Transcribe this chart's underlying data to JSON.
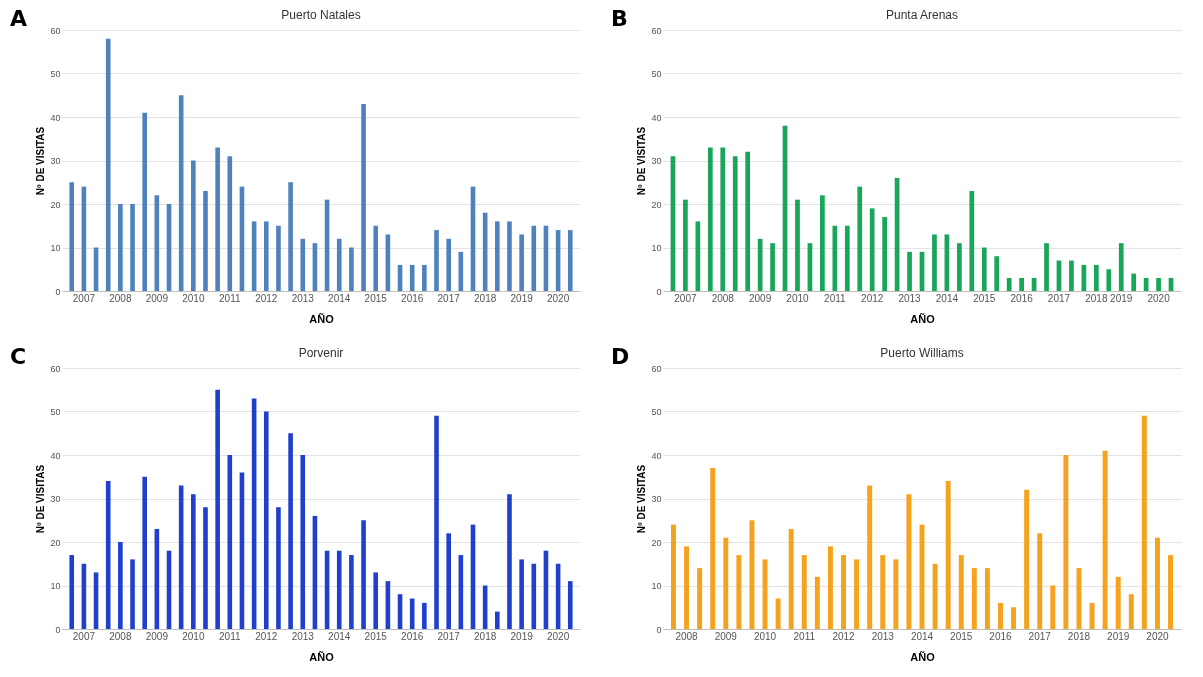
{
  "chart_data": [
    {
      "type": "bar",
      "title": "Puerto Natales",
      "xlabel": "AÑO",
      "ylabel": "Nº DE VISITAS",
      "annotations": [
        "A"
      ],
      "grid": "y",
      "ylim": [
        0,
        60
      ],
      "yticks": [
        0,
        10,
        20,
        30,
        40,
        50,
        60
      ],
      "categories": [
        null,
        "2007",
        null,
        null,
        "2008",
        null,
        null,
        "2009",
        null,
        null,
        "2010",
        null,
        null,
        "2011",
        null,
        null,
        "2012",
        null,
        null,
        "2013",
        null,
        null,
        "2014",
        null,
        null,
        "2015",
        null,
        null,
        "2016",
        null,
        null,
        "2017",
        null,
        null,
        "2018",
        null,
        null,
        "2019",
        null,
        null,
        "2020",
        null
      ],
      "series": [
        {
          "color": "#4f81bd",
          "values": [
            25,
            24,
            10,
            58,
            20,
            20,
            41,
            22,
            20,
            45,
            30,
            23,
            33,
            31,
            24,
            16,
            16,
            15,
            25,
            12,
            11,
            21,
            12,
            10,
            43,
            15,
            13,
            6,
            6,
            6,
            14,
            12,
            9,
            24,
            18,
            16,
            16,
            13,
            15,
            15,
            14,
            14
          ]
        }
      ]
    },
    {
      "type": "bar",
      "title": "Punta Arenas",
      "xlabel": "AÑO",
      "ylabel": "Nº DE VISITAS",
      "annotations": [
        "B"
      ],
      "grid": "y",
      "ylim": [
        0,
        60
      ],
      "yticks": [
        0,
        10,
        20,
        30,
        40,
        50,
        60
      ],
      "categories": [
        null,
        "2007",
        null,
        null,
        "2008",
        null,
        null,
        "2009",
        null,
        null,
        "2010",
        null,
        null,
        "2011",
        null,
        null,
        "2012",
        null,
        null,
        "2013",
        null,
        null,
        "2014",
        null,
        null,
        "2015",
        null,
        null,
        "2016",
        null,
        null,
        "2017",
        null,
        null,
        "2018",
        null,
        "2019",
        null,
        null,
        "2020",
        null
      ],
      "series": [
        {
          "color": "#1aa65a",
          "values": [
            31,
            21,
            16,
            33,
            33,
            31,
            32,
            12,
            11,
            38,
            21,
            11,
            22,
            15,
            15,
            24,
            19,
            17,
            26,
            9,
            9,
            13,
            13,
            11,
            23,
            10,
            8,
            3,
            3,
            3,
            11,
            7,
            7,
            6,
            6,
            5,
            11,
            4,
            3,
            3,
            3
          ]
        }
      ]
    },
    {
      "type": "bar",
      "title": "Porvenir",
      "xlabel": "AÑO",
      "ylabel": "Nº DE VISITAS",
      "annotations": [
        "C"
      ],
      "grid": "y",
      "ylim": [
        0,
        60
      ],
      "yticks": [
        0,
        10,
        20,
        30,
        40,
        50,
        60
      ],
      "categories": [
        null,
        "2007",
        null,
        null,
        "2008",
        null,
        null,
        "2009",
        null,
        null,
        "2010",
        null,
        null,
        "2011",
        null,
        null,
        "2012",
        null,
        null,
        "2013",
        null,
        null,
        "2014",
        null,
        null,
        "2015",
        null,
        null,
        "2016",
        null,
        null,
        "2017",
        null,
        null,
        "2018",
        null,
        null,
        "2019",
        null,
        null,
        "2020",
        null
      ],
      "series": [
        {
          "color": "#1f3fcc",
          "values": [
            17,
            15,
            13,
            34,
            20,
            16,
            35,
            23,
            18,
            33,
            31,
            28,
            55,
            40,
            36,
            53,
            50,
            28,
            45,
            40,
            26,
            18,
            18,
            17,
            25,
            13,
            11,
            8,
            7,
            6,
            49,
            22,
            17,
            24,
            10,
            4,
            31,
            16,
            15,
            18,
            15,
            11
          ]
        }
      ]
    },
    {
      "type": "bar",
      "title": "Puerto Williams",
      "xlabel": "AÑO",
      "ylabel": "Nº DE VISITAS",
      "annotations": [
        "D"
      ],
      "grid": "y",
      "ylim": [
        0,
        60
      ],
      "yticks": [
        0,
        10,
        20,
        30,
        40,
        50,
        60
      ],
      "categories": [
        null,
        "2008",
        null,
        null,
        "2009",
        null,
        null,
        "2010",
        null,
        null,
        "2011",
        null,
        null,
        "2012",
        null,
        null,
        "2013",
        null,
        null,
        "2014",
        null,
        null,
        "2015",
        null,
        null,
        "2016",
        null,
        null,
        "2017",
        null,
        null,
        "2018",
        null,
        null,
        "2019",
        null,
        null,
        "2020",
        null
      ],
      "series": [
        {
          "color": "#f5a31f",
          "values": [
            24,
            19,
            14,
            37,
            21,
            17,
            25,
            16,
            7,
            23,
            17,
            12,
            19,
            17,
            16,
            33,
            17,
            16,
            31,
            24,
            15,
            34,
            17,
            14,
            14,
            6,
            5,
            32,
            22,
            10,
            40,
            14,
            6,
            41,
            12,
            8,
            49,
            21,
            17
          ]
        }
      ]
    }
  ]
}
